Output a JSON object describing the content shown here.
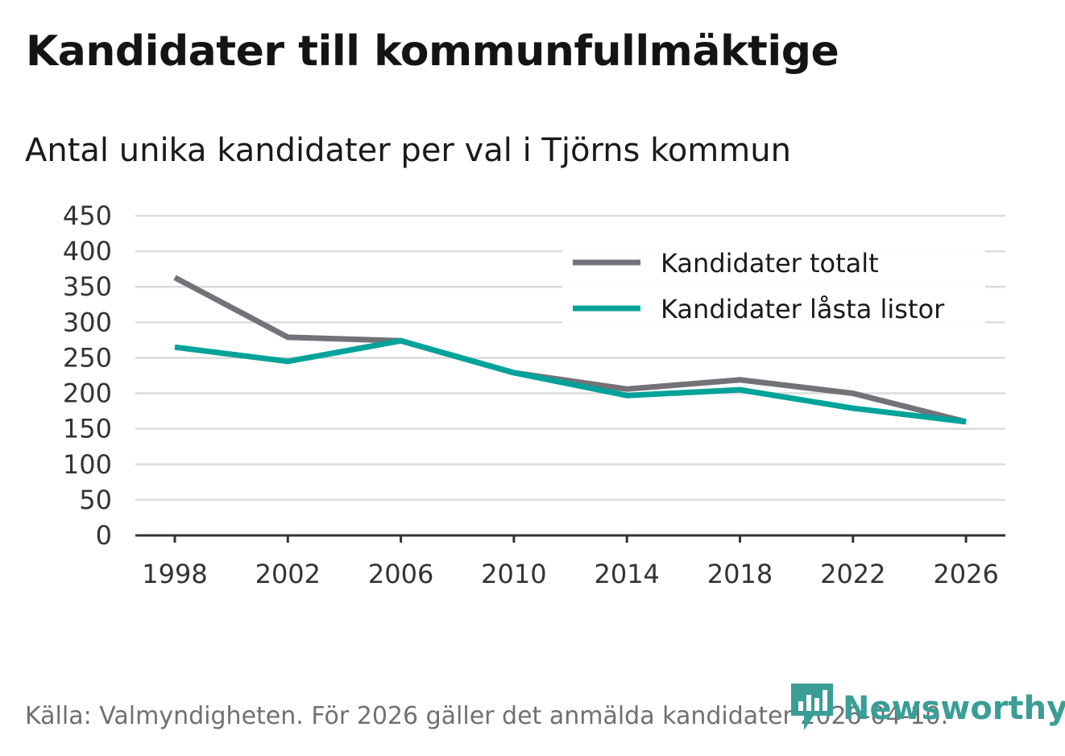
{
  "chart_data": {
    "type": "line",
    "title": "Kandidater till kommunfullmäktige",
    "subtitle": "Antal unika kandidater per val i Tjörns kommun",
    "categories": [
      "1998",
      "2002",
      "2006",
      "2010",
      "2014",
      "2018",
      "2022",
      "2026"
    ],
    "series": [
      {
        "name": "Kandidater totalt",
        "color": "#737278",
        "values": [
          363,
          279,
          274,
          229,
          206,
          219,
          200,
          160
        ]
      },
      {
        "name": "Kandidater låsta listor",
        "color": "#00a39a",
        "values": [
          265,
          245,
          274,
          229,
          197,
          205,
          179,
          160
        ]
      }
    ],
    "yticks": [
      "0",
      "50",
      "100",
      "150",
      "200",
      "250",
      "300",
      "350",
      "400",
      "450"
    ],
    "ylim": [
      0,
      450
    ],
    "xlabel": "",
    "ylabel": "",
    "grid": true,
    "legend": "top-right"
  },
  "footer": {
    "source": "Källa: Valmyndigheten. För 2026 gäller det anmälda kandidater 2026-04-10.",
    "brand": "Newsworthy",
    "brand_color": "#3a9e96"
  }
}
